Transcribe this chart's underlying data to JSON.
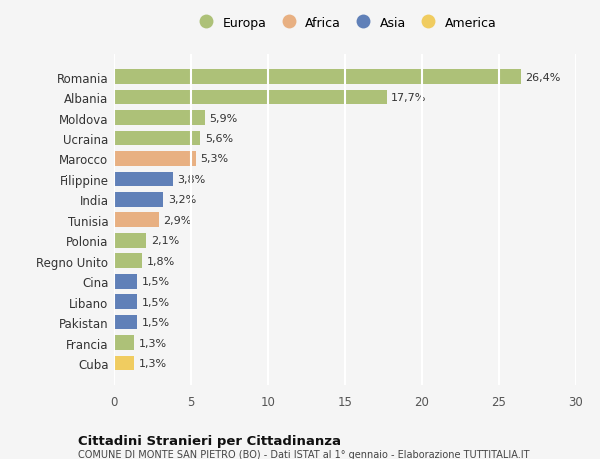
{
  "countries": [
    "Romania",
    "Albania",
    "Moldova",
    "Ucraina",
    "Marocco",
    "Filippine",
    "India",
    "Tunisia",
    "Polonia",
    "Regno Unito",
    "Cina",
    "Libano",
    "Pakistan",
    "Francia",
    "Cuba"
  ],
  "values": [
    26.4,
    17.7,
    5.9,
    5.6,
    5.3,
    3.8,
    3.2,
    2.9,
    2.1,
    1.8,
    1.5,
    1.5,
    1.5,
    1.3,
    1.3
  ],
  "continents": [
    "Europa",
    "Europa",
    "Europa",
    "Europa",
    "Africa",
    "Asia",
    "Asia",
    "Africa",
    "Europa",
    "Europa",
    "Asia",
    "Asia",
    "Asia",
    "Europa",
    "America"
  ],
  "colors": {
    "Europa": "#adc178",
    "Africa": "#e8b082",
    "Asia": "#6080b8",
    "America": "#f0cc60"
  },
  "legend_labels": [
    "Europa",
    "Africa",
    "Asia",
    "America"
  ],
  "legend_colors": [
    "#adc178",
    "#e8b082",
    "#6080b8",
    "#f0cc60"
  ],
  "title": "Cittadini Stranieri per Cittadinanza",
  "subtitle": "COMUNE DI MONTE SAN PIETRO (BO) - Dati ISTAT al 1° gennaio - Elaborazione TUTTITALIA.IT",
  "xlim": [
    0,
    30
  ],
  "xticks": [
    0,
    5,
    10,
    15,
    20,
    25,
    30
  ],
  "background_color": "#f5f5f5",
  "grid_color": "#ffffff",
  "bar_height": 0.72
}
